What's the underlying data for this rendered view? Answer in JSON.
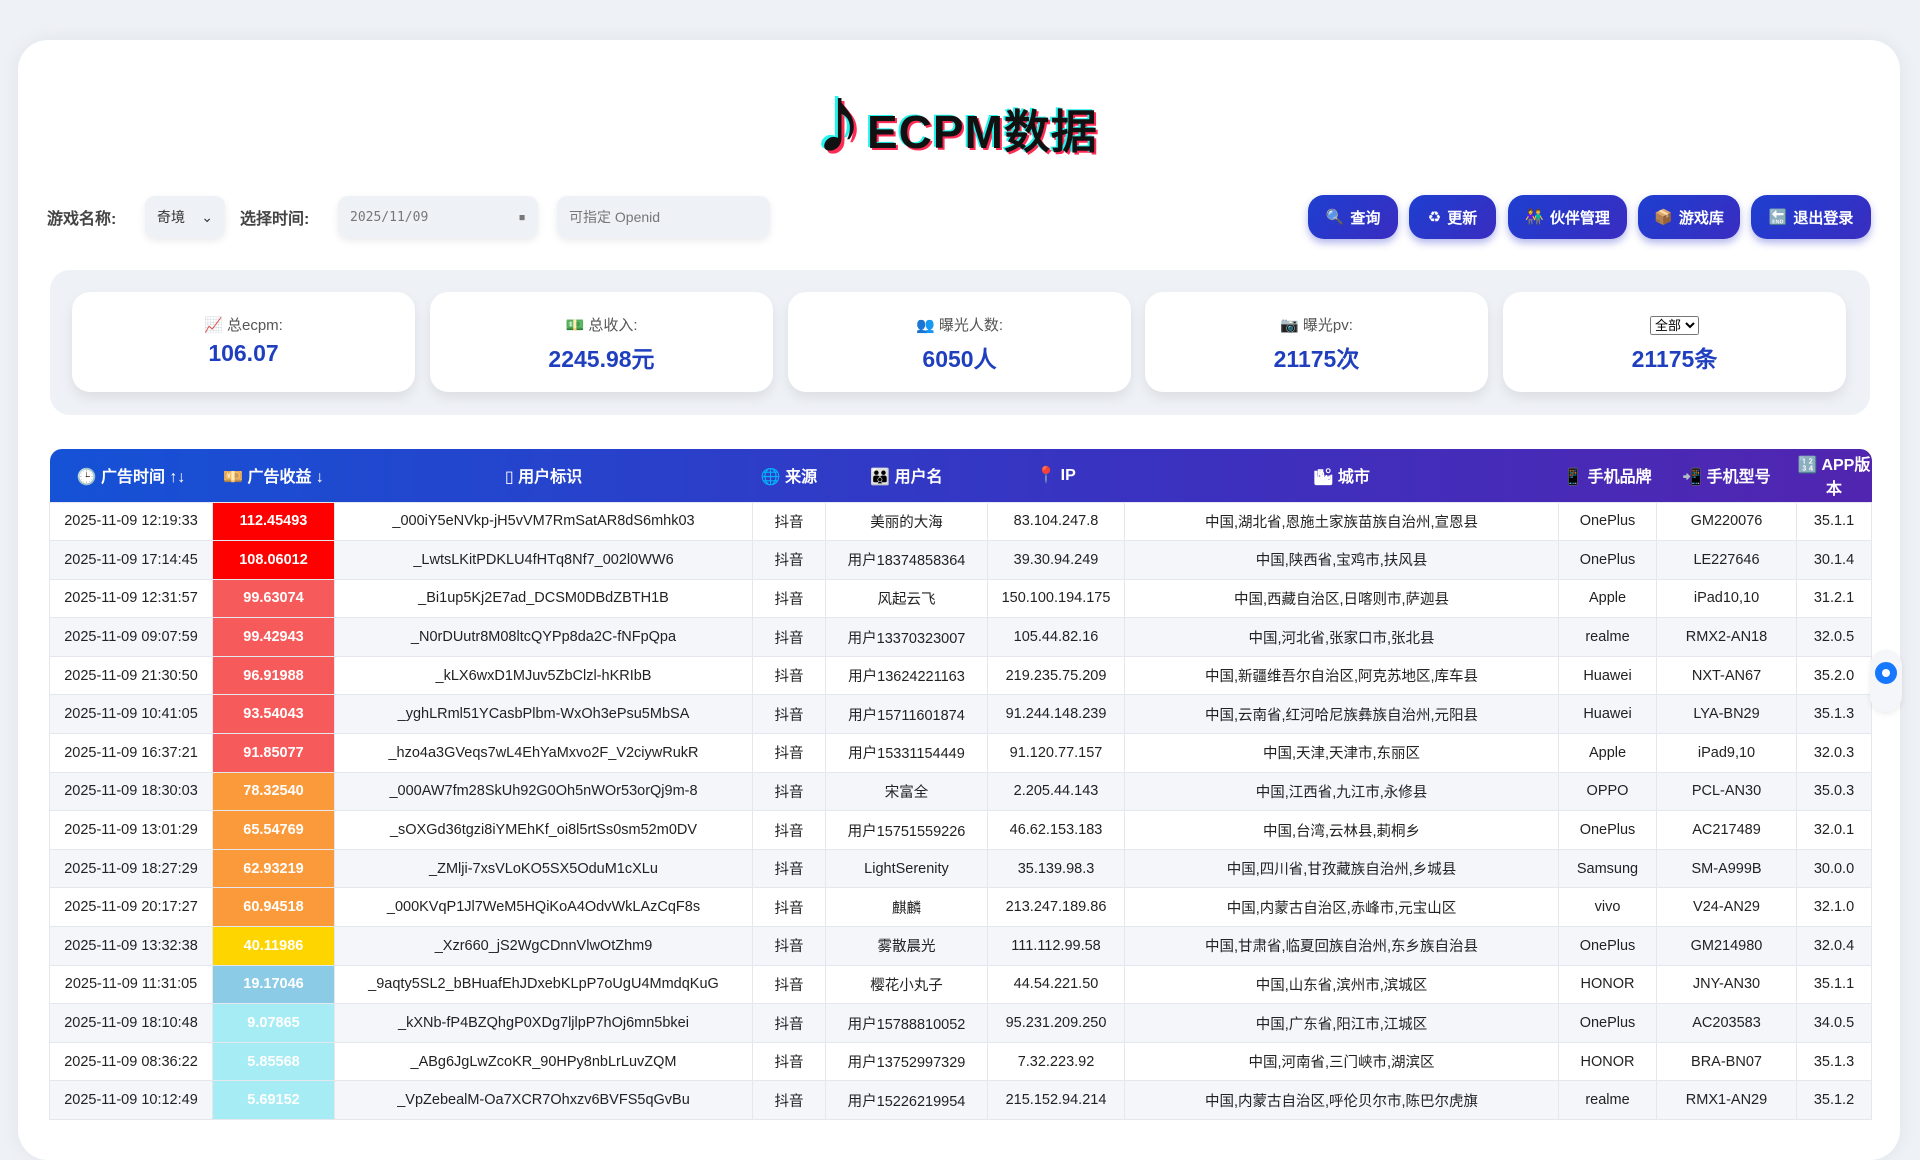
{
  "header": {
    "title": "ECPM数据",
    "logo_icon": "tiktok-note-icon"
  },
  "controls": {
    "game_label": "游戏名称:",
    "game_value": "奇境",
    "time_label": "选择时间:",
    "date_value": "2025/11/09",
    "openid_placeholder": "可指定 Openid"
  },
  "buttons": [
    {
      "label": "查询",
      "icon": "🔍"
    },
    {
      "label": "更新",
      "icon": "♻"
    },
    {
      "label": "伙伴管理",
      "icon": "👫"
    },
    {
      "label": "游戏库",
      "icon": "📦"
    },
    {
      "label": "退出登录",
      "icon": "🔚"
    }
  ],
  "stats": [
    {
      "icon": "📈",
      "label": "总ecpm:",
      "value": "106.07"
    },
    {
      "icon": "💵",
      "label": "总收入:",
      "value": "2245.98元"
    },
    {
      "icon": "👥",
      "label": "曝光人数:",
      "value": "6050人"
    },
    {
      "icon": "📷",
      "label": "曝光pv:",
      "value": "21175次"
    },
    {
      "filter": "全部",
      "value": "21175条"
    }
  ],
  "table": {
    "columns": [
      {
        "icon": "🕒",
        "label": "广告时间 ↑↓"
      },
      {
        "icon": "💴",
        "label": "广告收益 ↓"
      },
      {
        "icon": "▯",
        "label": "用户标识"
      },
      {
        "icon": "🌐",
        "label": "来源"
      },
      {
        "icon": "👪",
        "label": "用户名"
      },
      {
        "icon": "📍",
        "label": "IP"
      },
      {
        "icon": "🏙",
        "label": "城市"
      },
      {
        "icon": "📱",
        "label": "手机品牌"
      },
      {
        "icon": "📲",
        "label": "手机型号"
      },
      {
        "icon": "🔢",
        "label": "APP版本"
      }
    ],
    "rows": [
      [
        "2025-11-09 12:19:33",
        "112.45493",
        "_000iY5eNVkp-jH5vVM7RmSatAR8dS6mhk03",
        "抖音",
        "美丽的大海",
        "83.104.247.8",
        "中国,湖北省,恩施土家族苗族自治州,宣恩县",
        "OnePlus",
        "GM220076",
        "35.1.1"
      ],
      [
        "2025-11-09 17:14:45",
        "108.06012",
        "_LwtsLKitPDKLU4fHTq8Nf7_002l0WW6",
        "抖音",
        "用户18374858364",
        "39.30.94.249",
        "中国,陕西省,宝鸡市,扶风县",
        "OnePlus",
        "LE227646",
        "30.1.4"
      ],
      [
        "2025-11-09 12:31:57",
        "99.63074",
        "_Bi1up5Kj2E7ad_DCSM0DBdZBTH1B",
        "抖音",
        "风起云飞",
        "150.100.194.175",
        "中国,西藏自治区,日喀则市,萨迦县",
        "Apple",
        "iPad10,10",
        "31.2.1"
      ],
      [
        "2025-11-09 09:07:59",
        "99.42943",
        "_N0rDUutr8M08ltcQYPp8da2C-fNFpQpa",
        "抖音",
        "用户13370323007",
        "105.44.82.16",
        "中国,河北省,张家口市,张北县",
        "realme",
        "RMX2-AN18",
        "32.0.5"
      ],
      [
        "2025-11-09 21:30:50",
        "96.91988",
        "_kLX6wxD1MJuv5ZbClzl-hKRIbB",
        "抖音",
        "用户13624221163",
        "219.235.75.209",
        "中国,新疆维吾尔自治区,阿克苏地区,库车县",
        "Huawei",
        "NXT-AN67",
        "35.2.0"
      ],
      [
        "2025-11-09 10:41:05",
        "93.54043",
        "_yghLRml51YCasbPlbm-WxOh3ePsu5MbSA",
        "抖音",
        "用户15711601874",
        "91.244.148.239",
        "中国,云南省,红河哈尼族彝族自治州,元阳县",
        "Huawei",
        "LYA-BN29",
        "35.1.3"
      ],
      [
        "2025-11-09 16:37:21",
        "91.85077",
        "_hzo4a3GVeqs7wL4EhYaMxvo2F_V2ciywRukR",
        "抖音",
        "用户15331154449",
        "91.120.77.157",
        "中国,天津,天津市,东丽区",
        "Apple",
        "iPad9,10",
        "32.0.3"
      ],
      [
        "2025-11-09 18:30:03",
        "78.32540",
        "_000AW7fm28SkUh92G0Oh5nWOr53orQj9m-8",
        "抖音",
        "宋富全",
        "2.205.44.143",
        "中国,江西省,九江市,永修县",
        "OPPO",
        "PCL-AN30",
        "35.0.3"
      ],
      [
        "2025-11-09 13:01:29",
        "65.54769",
        "_sOXGd36tgzi8iYMEhKf_oi8l5rtSs0sm52m0DV",
        "抖音",
        "用户15751559226",
        "46.62.153.183",
        "中国,台湾,云林县,莿桐乡",
        "OnePlus",
        "AC217489",
        "32.0.1"
      ],
      [
        "2025-11-09 18:27:29",
        "62.93219",
        "_ZMlji-7xsVLoKO5SX5OduM1cXLu",
        "抖音",
        "LightSerenity",
        "35.139.98.3",
        "中国,四川省,甘孜藏族自治州,乡城县",
        "Samsung",
        "SM-A999B",
        "30.0.0"
      ],
      [
        "2025-11-09 20:17:27",
        "60.94518",
        "_000KVqP1Jl7WeM5HQiKoA4OdvWkLAzCqF8s",
        "抖音",
        "麒麟",
        "213.247.189.86",
        "中国,内蒙古自治区,赤峰市,元宝山区",
        "vivo",
        "V24-AN29",
        "32.1.0"
      ],
      [
        "2025-11-09 13:32:38",
        "40.11986",
        "_Xzr660_jS2WgCDnnVlwOtZhm9",
        "抖音",
        "雾散晨光",
        "111.112.99.58",
        "中国,甘肃省,临夏回族自治州,东乡族自治县",
        "OnePlus",
        "GM214980",
        "32.0.4"
      ],
      [
        "2025-11-09 11:31:05",
        "19.17046",
        "_9aqty5SL2_bBHuafEhJDxebKLpP7oUgU4MmdqKuG",
        "抖音",
        "樱花小丸子",
        "44.54.221.50",
        "中国,山东省,滨州市,滨城区",
        "HONOR",
        "JNY-AN30",
        "35.1.1"
      ],
      [
        "2025-11-09 18:10:48",
        "9.07865",
        "_kXNb-fP4BZQhgP0XDg7ljlpP7hOj6mn5bkei",
        "抖音",
        "用户15788810052",
        "95.231.209.250",
        "中国,广东省,阳江市,江城区",
        "OnePlus",
        "AC203583",
        "34.0.5"
      ],
      [
        "2025-11-09 08:36:22",
        "5.85568",
        "_ABg6JgLwZcoKR_90HPy8nbLrLuvZQM",
        "抖音",
        "用户13752997329",
        "7.32.223.92",
        "中国,河南省,三门峡市,湖滨区",
        "HONOR",
        "BRA-BN07",
        "35.1.3"
      ],
      [
        "2025-11-09 10:12:49",
        "5.69152",
        "_VpZebealM-Oa7XCR7Ohxzv6BVFS5qGvBu",
        "抖音",
        "用户15226219954",
        "215.152.94.214",
        "中国,内蒙古自治区,呼伦贝尔市,陈巴尔虎旗",
        "realme",
        "RMX1-AN29",
        "35.1.2"
      ]
    ]
  },
  "revenue_colors": {
    "above_100": "#ff0000",
    "90_100": "#f75a5a",
    "60_80": "#fb9a3a",
    "40": "#ffd500",
    "10_20": "#8ccbe6",
    "below_10": "#a6ecf4"
  }
}
